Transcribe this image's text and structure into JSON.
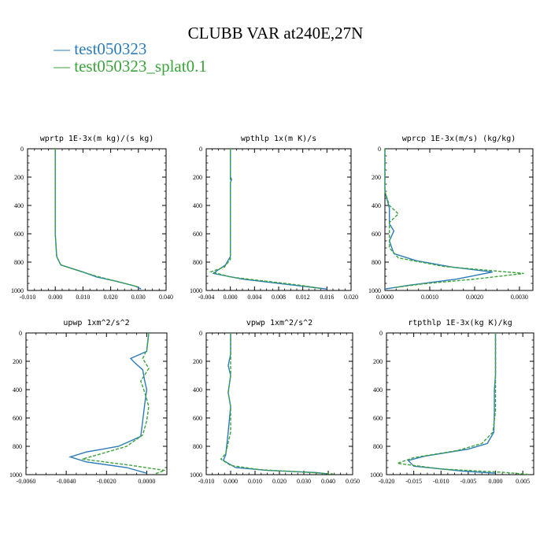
{
  "title": "CLUBB VAR at240E,27N",
  "legend": [
    {
      "label": "test050323",
      "color": "#2b7bba"
    },
    {
      "label": "test050323_splat0.1",
      "color": "#3aa33a"
    }
  ],
  "chart_data": [
    {
      "type": "line",
      "title": "wprtp  1E-3x(m kg)/(s kg)",
      "xlim": [
        -0.01,
        0.04
      ],
      "ylim": [
        0,
        1000
      ],
      "y_inverted": true,
      "xticks": [
        "-0.010",
        "0.000",
        "0.010",
        "0.020",
        "0.030",
        "0.040"
      ],
      "yticks": [
        "0",
        "200",
        "400",
        "600",
        "800",
        "1000"
      ],
      "series": [
        {
          "name": "test050323",
          "points": [
            [
              0.0,
              0
            ],
            [
              0.0,
              200
            ],
            [
              0.0,
              400
            ],
            [
              0.0,
              600
            ],
            [
              0.0005,
              760
            ],
            [
              0.002,
              820
            ],
            [
              0.01,
              870
            ],
            [
              0.015,
              905
            ],
            [
              0.022,
              935
            ],
            [
              0.029,
              970
            ],
            [
              0.031,
              990
            ]
          ]
        },
        {
          "name": "test050323_splat0.1",
          "points": [
            [
              0.0,
              0
            ],
            [
              0.0,
              200
            ],
            [
              0.0,
              400
            ],
            [
              0.0,
              600
            ],
            [
              0.0005,
              760
            ],
            [
              0.002,
              820
            ],
            [
              0.009,
              865
            ],
            [
              0.015,
              900
            ],
            [
              0.021,
              930
            ],
            [
              0.027,
              960
            ],
            [
              0.03,
              975
            ]
          ]
        }
      ]
    },
    {
      "type": "line",
      "title": "wpthlp  1x(m K)/s",
      "xlim": [
        -0.004,
        0.02
      ],
      "ylim": [
        0,
        1000
      ],
      "y_inverted": true,
      "xticks": [
        "-0.004",
        "0.000",
        "0.004",
        "0.008",
        "0.012",
        "0.016",
        "0.020"
      ],
      "yticks": [
        "0",
        "200",
        "400",
        "600",
        "800",
        "1000"
      ],
      "series": [
        {
          "name": "test050323",
          "points": [
            [
              0.0,
              0
            ],
            [
              0.0,
              200
            ],
            [
              0.0002,
              215
            ],
            [
              0.0,
              240
            ],
            [
              0.0,
              400
            ],
            [
              0.0,
              600
            ],
            [
              0.0,
              760
            ],
            [
              -0.0008,
              820
            ],
            [
              -0.0022,
              860
            ],
            [
              -0.0028,
              880
            ],
            [
              0.002,
              920
            ],
            [
              0.008,
              950
            ],
            [
              0.013,
              975
            ],
            [
              0.016,
              990
            ]
          ]
        },
        {
          "name": "test050323_splat0.1",
          "points": [
            [
              0.0,
              0
            ],
            [
              0.0,
              200
            ],
            [
              0.0,
              400
            ],
            [
              0.0,
              600
            ],
            [
              0.0,
              780
            ],
            [
              -0.001,
              835
            ],
            [
              -0.0032,
              868
            ],
            [
              0.0,
              905
            ],
            [
              0.006,
              935
            ],
            [
              0.011,
              960
            ],
            [
              0.015,
              985
            ]
          ]
        }
      ]
    },
    {
      "type": "line",
      "title": "wprcp  1E-3x(m/s) (kg/kg)",
      "xlim": [
        0.0,
        0.0033
      ],
      "ylim": [
        0,
        1000
      ],
      "y_inverted": true,
      "xticks": [
        "0.0000",
        "0.0010",
        "0.0020",
        "0.0030"
      ],
      "yticks": [
        "0",
        "200",
        "400",
        "600",
        "800",
        "1000"
      ],
      "series": [
        {
          "name": "test050323",
          "points": [
            [
              0.0,
              0
            ],
            [
              0.0,
              300
            ],
            [
              0.0001,
              420
            ],
            [
              0.0001,
              530
            ],
            [
              0.0002,
              580
            ],
            [
              0.0001,
              650
            ],
            [
              0.0002,
              740
            ],
            [
              0.0007,
              790
            ],
            [
              0.0015,
              835
            ],
            [
              0.0024,
              870
            ],
            [
              0.0016,
              920
            ],
            [
              0.0005,
              965
            ],
            [
              0.0,
              990
            ]
          ]
        },
        {
          "name": "test050323_splat0.1",
          "points": [
            [
              0.0,
              0
            ],
            [
              0.0,
              300
            ],
            [
              0.0001,
              400
            ],
            [
              0.0003,
              460
            ],
            [
              0.0001,
              520
            ],
            [
              0.0001,
              620
            ],
            [
              0.0001,
              700
            ],
            [
              0.0003,
              770
            ],
            [
              0.0013,
              830
            ],
            [
              0.0031,
              880
            ],
            [
              0.002,
              920
            ],
            [
              0.0008,
              955
            ],
            [
              0.0002,
              980
            ]
          ]
        }
      ]
    },
    {
      "type": "line",
      "title": "upwp  1xm^2/s^2",
      "xlim": [
        -0.006,
        0.001
      ],
      "ylim": [
        0,
        1000
      ],
      "y_inverted": true,
      "xticks": [
        "-0.0060",
        "-0.0040",
        "-0.0020",
        "0.0000"
      ],
      "yticks": [
        "0",
        "200",
        "400",
        "600",
        "800",
        "1000"
      ],
      "series": [
        {
          "name": "test050323",
          "points": [
            [
              0.0001,
              0
            ],
            [
              0.0,
              130
            ],
            [
              -0.0008,
              180
            ],
            [
              -0.0006,
              210
            ],
            [
              -0.0002,
              260
            ],
            [
              -0.0001,
              340
            ],
            [
              0.0,
              400
            ],
            [
              -0.0001,
              500
            ],
            [
              -0.0002,
              620
            ],
            [
              -0.0003,
              730
            ],
            [
              -0.0014,
              800
            ],
            [
              -0.003,
              840
            ],
            [
              -0.0038,
              875
            ],
            [
              -0.003,
              910
            ],
            [
              -0.001,
              950
            ],
            [
              0.0,
              990
            ]
          ]
        },
        {
          "name": "test050323_splat0.1",
          "points": [
            [
              0.0001,
              0
            ],
            [
              0.0,
              120
            ],
            [
              -0.0002,
              180
            ],
            [
              0.0001,
              250
            ],
            [
              -0.0003,
              340
            ],
            [
              -0.0001,
              420
            ],
            [
              0.0001,
              520
            ],
            [
              0.0,
              620
            ],
            [
              -0.0002,
              720
            ],
            [
              -0.001,
              800
            ],
            [
              -0.0022,
              850
            ],
            [
              -0.0032,
              890
            ],
            [
              -0.001,
              930
            ],
            [
              0.0009,
              970
            ],
            [
              0.0004,
              995
            ]
          ]
        }
      ]
    },
    {
      "type": "line",
      "title": "vpwp  1xm^2/s^2",
      "xlim": [
        -0.01,
        0.05
      ],
      "ylim": [
        0,
        1000
      ],
      "y_inverted": true,
      "xticks": [
        "-0.010",
        "0.000",
        "0.010",
        "0.020",
        "0.030",
        "0.040",
        "0.050"
      ],
      "yticks": [
        "0",
        "200",
        "400",
        "600",
        "800",
        "1000"
      ],
      "series": [
        {
          "name": "test050323",
          "points": [
            [
              0.0,
              0
            ],
            [
              0.0,
              150
            ],
            [
              -0.001,
              230
            ],
            [
              0.0,
              300
            ],
            [
              -0.001,
              420
            ],
            [
              0.0,
              520
            ],
            [
              -0.001,
              700
            ],
            [
              -0.002,
              860
            ],
            [
              -0.003,
              900
            ],
            [
              0.002,
              950
            ],
            [
              0.015,
              970
            ],
            [
              0.035,
              985
            ],
            [
              0.04,
              995
            ]
          ]
        },
        {
          "name": "test050323_splat0.1",
          "points": [
            [
              0.0,
              0
            ],
            [
              0.0,
              150
            ],
            [
              0.0,
              300
            ],
            [
              -0.001,
              420
            ],
            [
              0.0,
              520
            ],
            [
              0.0,
              700
            ],
            [
              -0.002,
              850
            ],
            [
              -0.004,
              890
            ],
            [
              0.0,
              935
            ],
            [
              0.012,
              965
            ],
            [
              0.03,
              982
            ],
            [
              0.042,
              995
            ]
          ]
        }
      ]
    },
    {
      "type": "line",
      "title": "rtpthlp  1E-3x(kg K)/kg",
      "xlim": [
        -0.02,
        0.007
      ],
      "ylim": [
        0,
        1000
      ],
      "y_inverted": true,
      "xticks": [
        "-0.020",
        "-0.015",
        "-0.010",
        "-0.005",
        "0.000",
        "0.005"
      ],
      "yticks": [
        "0",
        "200",
        "400",
        "600",
        "800",
        "1000"
      ],
      "series": [
        {
          "name": "test050323",
          "points": [
            [
              0.0,
              0
            ],
            [
              0.0,
              300
            ],
            [
              -0.0002,
              400
            ],
            [
              -0.0002,
              550
            ],
            [
              -0.0003,
              700
            ],
            [
              -0.0015,
              780
            ],
            [
              -0.005,
              820
            ],
            [
              -0.013,
              870
            ],
            [
              -0.016,
              900
            ],
            [
              -0.015,
              940
            ],
            [
              -0.006,
              975
            ],
            [
              0.0,
              990
            ]
          ]
        },
        {
          "name": "test050323_splat0.1",
          "points": [
            [
              0.0,
              0
            ],
            [
              0.0,
              300
            ],
            [
              0.0,
              400
            ],
            [
              0.0,
              550
            ],
            [
              -0.0005,
              700
            ],
            [
              -0.0025,
              780
            ],
            [
              -0.007,
              830
            ],
            [
              -0.015,
              880
            ],
            [
              -0.018,
              920
            ],
            [
              -0.01,
              960
            ],
            [
              0.002,
              985
            ],
            [
              0.006,
              998
            ]
          ]
        }
      ]
    }
  ]
}
